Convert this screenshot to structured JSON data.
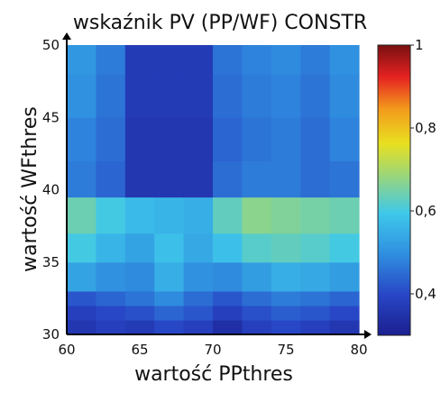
{
  "chart_data": {
    "type": "heatmap",
    "title": "wskaźnik PV (PP/WF) CONSTR",
    "xlabel": "wartość PPthres",
    "ylabel": "wartość WFthres",
    "xlim": [
      60,
      80
    ],
    "ylim": [
      30,
      50
    ],
    "x_ticks": [
      "60",
      "65",
      "70",
      "75",
      "80"
    ],
    "y_ticks": [
      "30",
      "35",
      "40",
      "45",
      "50"
    ],
    "colorbar": {
      "range": [
        0.3,
        1
      ],
      "ticks": [
        "0,4",
        "0,6",
        "0,8",
        "1"
      ],
      "colormap": "jet"
    },
    "x_breaks": [
      60,
      62,
      64,
      66,
      68,
      70,
      72,
      74,
      76,
      78,
      80
    ],
    "y_breaks": [
      30,
      31,
      32,
      33,
      35,
      37,
      39.5,
      42,
      45,
      48,
      50
    ],
    "values": [
      [
        0.36,
        0.38,
        0.37,
        0.4,
        0.38,
        0.34,
        0.38,
        0.4,
        0.38,
        0.36
      ],
      [
        0.38,
        0.4,
        0.41,
        0.44,
        0.42,
        0.38,
        0.41,
        0.43,
        0.42,
        0.4
      ],
      [
        0.42,
        0.44,
        0.46,
        0.49,
        0.45,
        0.42,
        0.45,
        0.47,
        0.46,
        0.44
      ],
      [
        0.53,
        0.5,
        0.49,
        0.55,
        0.5,
        0.49,
        0.52,
        0.55,
        0.54,
        0.52
      ],
      [
        0.6,
        0.56,
        0.53,
        0.58,
        0.54,
        0.58,
        0.62,
        0.63,
        0.62,
        0.6
      ],
      [
        0.64,
        0.6,
        0.57,
        0.56,
        0.55,
        0.63,
        0.67,
        0.66,
        0.65,
        0.64
      ],
      [
        0.47,
        0.44,
        0.36,
        0.36,
        0.36,
        0.45,
        0.47,
        0.47,
        0.45,
        0.46
      ],
      [
        0.48,
        0.45,
        0.36,
        0.36,
        0.36,
        0.44,
        0.46,
        0.47,
        0.45,
        0.48
      ],
      [
        0.5,
        0.46,
        0.37,
        0.37,
        0.37,
        0.45,
        0.47,
        0.48,
        0.46,
        0.49
      ],
      [
        0.51,
        0.47,
        0.37,
        0.37,
        0.37,
        0.46,
        0.48,
        0.49,
        0.47,
        0.5
      ]
    ]
  }
}
